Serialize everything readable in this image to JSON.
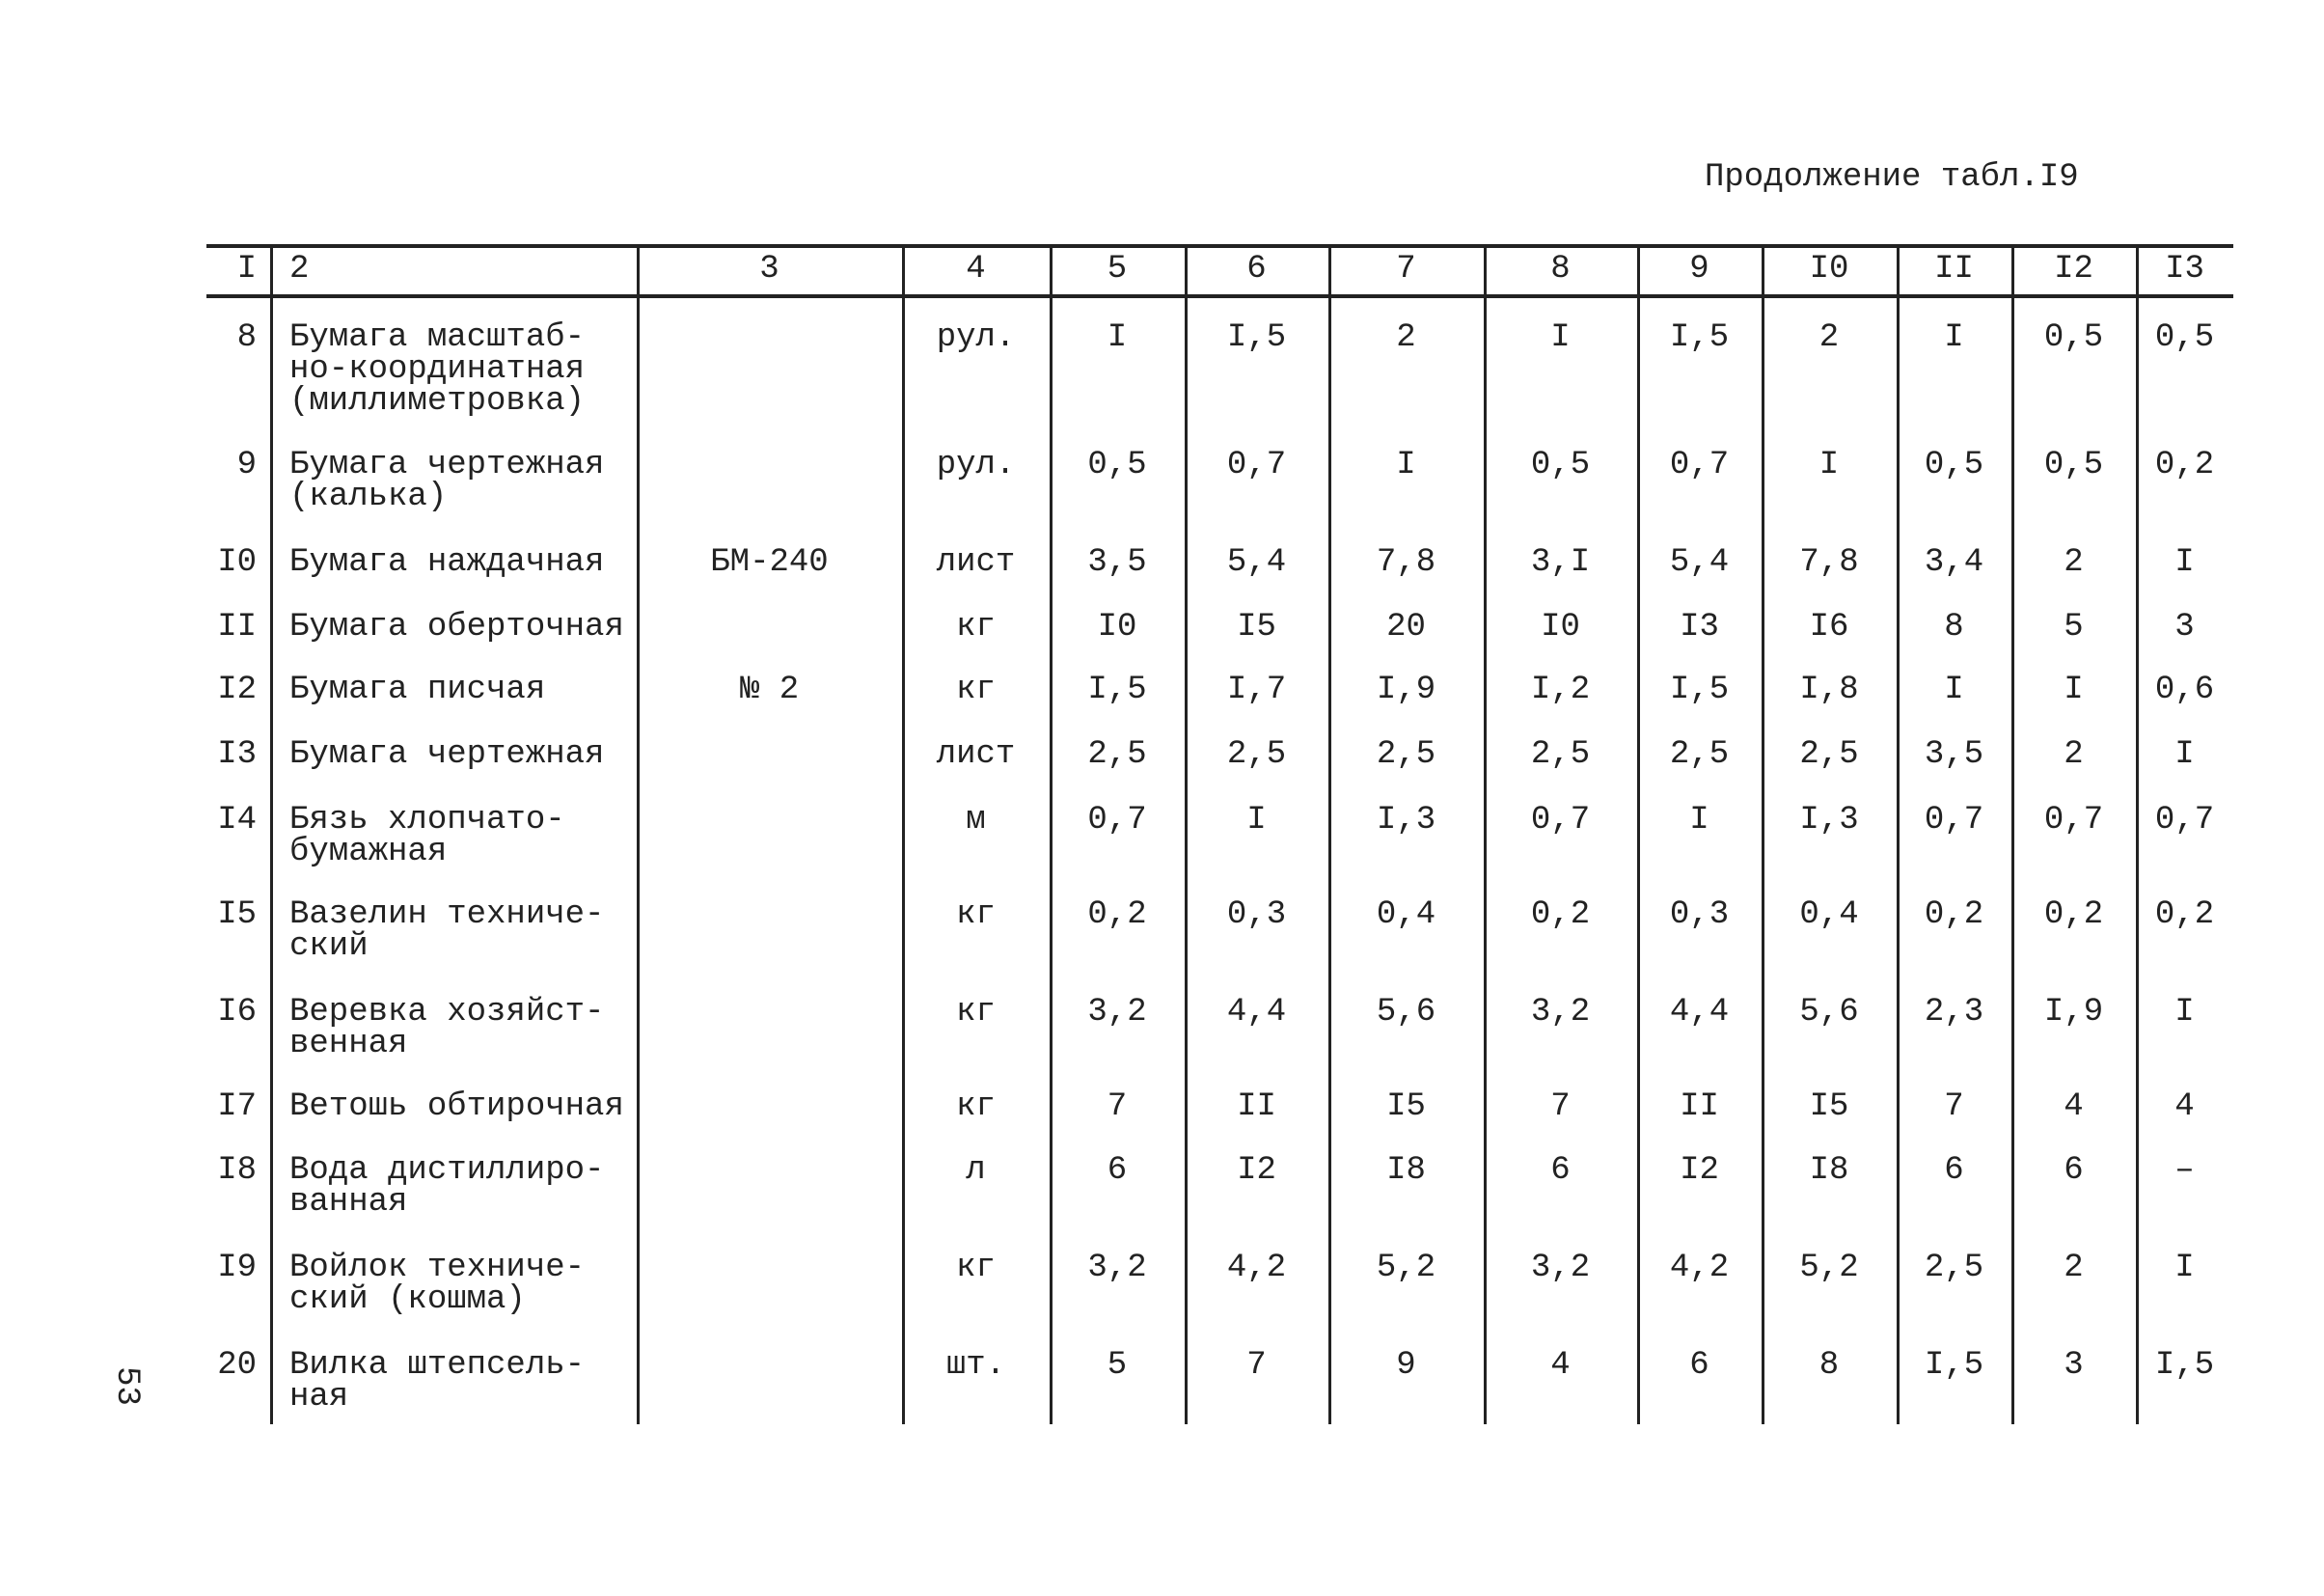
{
  "header": {
    "title": "Продолжение табл.I9",
    "page_number": "53"
  },
  "table": {
    "columns": [
      "I",
      "2",
      "3",
      "4",
      "5",
      "6",
      "7",
      "8",
      "9",
      "I0",
      "II",
      "I2",
      "I3"
    ],
    "rows": [
      [
        "8",
        "Бумага масштаб-\nно-координатная\n(миллиметровка)",
        null,
        "рул.",
        "I",
        "I,5",
        "2",
        "I",
        "I,5",
        "2",
        "I",
        "0,5",
        "0,5"
      ],
      [
        "9",
        "Бумага чертежная\n(калька)",
        null,
        "рул.",
        "0,5",
        "0,7",
        "I",
        "0,5",
        "0,7",
        "I",
        "0,5",
        "0,5",
        "0,2"
      ],
      [
        "I0",
        "Бумага наждачная",
        "БМ-240",
        "лист",
        "3,5",
        "5,4",
        "7,8",
        "3,I",
        "5,4",
        "7,8",
        "3,4",
        "2",
        "I"
      ],
      [
        "II",
        "Бумага оберточная",
        null,
        "кг",
        "I0",
        "I5",
        "20",
        "I0",
        "I3",
        "I6",
        "8",
        "5",
        "3"
      ],
      [
        "I2",
        "Бумага писчая",
        "№ 2",
        "кг",
        "I,5",
        "I,7",
        "I,9",
        "I,2",
        "I,5",
        "I,8",
        "I",
        "I",
        "0,6"
      ],
      [
        "I3",
        "Бумага чертежная",
        null,
        "лист",
        "2,5",
        "2,5",
        "2,5",
        "2,5",
        "2,5",
        "2,5",
        "3,5",
        "2",
        "I"
      ],
      [
        "I4",
        "Бязь хлопчато-\nбумажная",
        null,
        "м",
        "0,7",
        "I",
        "I,3",
        "0,7",
        "I",
        "I,3",
        "0,7",
        "0,7",
        "0,7"
      ],
      [
        "I5",
        "Вазелин техниче-\nский",
        null,
        "кг",
        "0,2",
        "0,3",
        "0,4",
        "0,2",
        "0,3",
        "0,4",
        "0,2",
        "0,2",
        "0,2"
      ],
      [
        "I6",
        "Веревка хозяйст-\nвенная",
        null,
        "кг",
        "3,2",
        "4,4",
        "5,6",
        "3,2",
        "4,4",
        "5,6",
        "2,3",
        "I,9",
        "I"
      ],
      [
        "I7",
        "Ветошь обтирочная",
        null,
        "кг",
        "7",
        "II",
        "I5",
        "7",
        "II",
        "I5",
        "7",
        "4",
        "4"
      ],
      [
        "I8",
        "Вода дистиллиро-\nванная",
        null,
        "л",
        "6",
        "I2",
        "I8",
        "6",
        "I2",
        "I8",
        "6",
        "6",
        "–"
      ],
      [
        "I9",
        "Войлок техниче-\nский (кошма)",
        null,
        "кг",
        "3,2",
        "4,2",
        "5,2",
        "3,2",
        "4,2",
        "5,2",
        "2,5",
        "2",
        "I"
      ],
      [
        "20",
        "Вилка штепсель-\nная",
        null,
        "шт.",
        "5",
        "7",
        "9",
        "4",
        "6",
        "8",
        "I,5",
        "3",
        "I,5"
      ]
    ]
  }
}
